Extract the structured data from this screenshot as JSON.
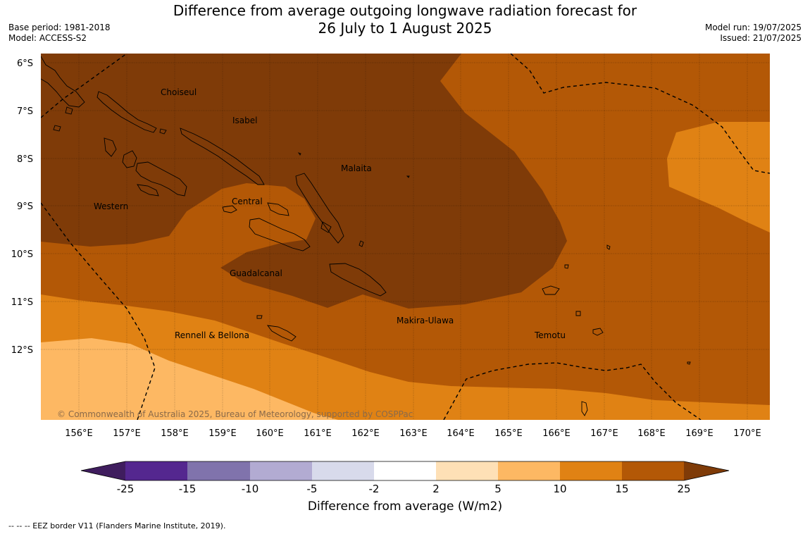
{
  "header": {
    "title_line1": "Difference from average outgoing longwave radiation forecast for",
    "title_line2": "26 July to 1 August 2025",
    "base_period": "Base period: 1981-2018",
    "model": "Model: ACCESS-S2",
    "model_run": "Model run: 19/07/2025",
    "issued": "Issued: 21/07/2025"
  },
  "map": {
    "lat_labels": [
      "6°S",
      "7°S",
      "8°S",
      "9°S",
      "10°S",
      "11°S",
      "12°S"
    ],
    "lon_labels": [
      "156°E",
      "157°E",
      "158°E",
      "159°E",
      "160°E",
      "161°E",
      "162°E",
      "163°E",
      "164°E",
      "165°E",
      "166°E",
      "167°E",
      "168°E",
      "169°E",
      "170°E"
    ],
    "regions": [
      {
        "name": "Choiseul"
      },
      {
        "name": "Isabel"
      },
      {
        "name": "Malaita"
      },
      {
        "name": "Western"
      },
      {
        "name": "Central"
      },
      {
        "name": "Guadalcanal"
      },
      {
        "name": "Rennell & Bellona"
      },
      {
        "name": "Makira-Ulawa"
      },
      {
        "name": "Temotu"
      }
    ],
    "copyright": "© Commonwealth of Australia 2025, Bureau of Meteorology, supported by COSPPac"
  },
  "colorbar": {
    "ticks": [
      "-25",
      "-15",
      "-10",
      "-5",
      "-2",
      "2",
      "5",
      "10",
      "15",
      "25"
    ],
    "colors": [
      "#3f1d5e",
      "#54278f",
      "#8073ac",
      "#b2abd2",
      "#d8daeb",
      "#ffffff",
      "#fee0b6",
      "#fdb863",
      "#e08214",
      "#b35806",
      "#7f3b08"
    ],
    "title": "Difference from average (W/m2)"
  },
  "footnote": "--  --  -- EEZ border V11 (Flanders Marine Institute, 2019)."
}
